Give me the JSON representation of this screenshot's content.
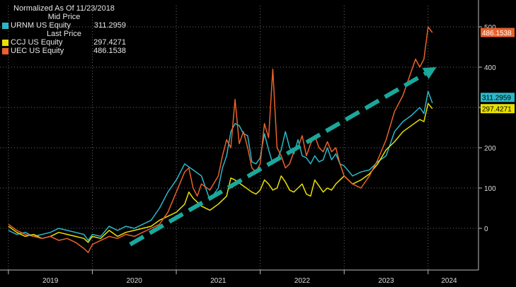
{
  "header": {
    "normalized_label": "Normalized As Of 11/23/2018",
    "mid_price_label": "Mid Price",
    "last_price_label": "Last Price"
  },
  "chart_data": {
    "type": "line",
    "title": "",
    "xlabel": "",
    "ylabel": "",
    "x_ticks": [
      "2019",
      "2020",
      "2021",
      "2022",
      "2023",
      "2024"
    ],
    "y_ticks": [
      0,
      100,
      200,
      300,
      400,
      500
    ],
    "ylim": [
      -100,
      520
    ],
    "xlim": [
      2018.9,
      2024.6
    ],
    "grid": true,
    "y_axis_side": "right",
    "legend_position": "top-left",
    "series": [
      {
        "name": "URNM US Equity",
        "price_type": "Mid Price",
        "last_value": "311.2959",
        "color": "#2ab8c8",
        "points": [
          [
            2019.0,
            -5
          ],
          [
            2019.1,
            -15
          ],
          [
            2019.2,
            -10
          ],
          [
            2019.3,
            -20
          ],
          [
            2019.4,
            -15
          ],
          [
            2019.5,
            -10
          ],
          [
            2019.6,
            0
          ],
          [
            2019.7,
            -5
          ],
          [
            2019.8,
            -10
          ],
          [
            2019.9,
            -15
          ],
          [
            2019.95,
            -30
          ],
          [
            2020.0,
            -15
          ],
          [
            2020.1,
            -20
          ],
          [
            2020.2,
            5
          ],
          [
            2020.3,
            -5
          ],
          [
            2020.4,
            5
          ],
          [
            2020.5,
            0
          ],
          [
            2020.6,
            10
          ],
          [
            2020.7,
            20
          ],
          [
            2020.8,
            50
          ],
          [
            2020.9,
            90
          ],
          [
            2021.0,
            120
          ],
          [
            2021.1,
            160
          ],
          [
            2021.2,
            145
          ],
          [
            2021.3,
            130
          ],
          [
            2021.35,
            100
          ],
          [
            2021.4,
            70
          ],
          [
            2021.5,
            100
          ],
          [
            2021.55,
            150
          ],
          [
            2021.6,
            180
          ],
          [
            2021.65,
            240
          ],
          [
            2021.7,
            260
          ],
          [
            2021.75,
            255
          ],
          [
            2021.8,
            235
          ],
          [
            2021.85,
            230
          ],
          [
            2021.9,
            165
          ],
          [
            2021.95,
            160
          ],
          [
            2022.0,
            175
          ],
          [
            2022.05,
            235
          ],
          [
            2022.1,
            195
          ],
          [
            2022.15,
            160
          ],
          [
            2022.2,
            170
          ],
          [
            2022.25,
            195
          ],
          [
            2022.3,
            240
          ],
          [
            2022.35,
            200
          ],
          [
            2022.4,
            185
          ],
          [
            2022.45,
            220
          ],
          [
            2022.5,
            180
          ],
          [
            2022.55,
            175
          ],
          [
            2022.6,
            160
          ],
          [
            2022.65,
            180
          ],
          [
            2022.7,
            165
          ],
          [
            2022.75,
            170
          ],
          [
            2022.8,
            200
          ],
          [
            2022.85,
            170
          ],
          [
            2022.9,
            185
          ],
          [
            2022.95,
            160
          ],
          [
            2023.0,
            155
          ],
          [
            2023.1,
            130
          ],
          [
            2023.2,
            140
          ],
          [
            2023.3,
            145
          ],
          [
            2023.4,
            165
          ],
          [
            2023.5,
            180
          ],
          [
            2023.6,
            240
          ],
          [
            2023.7,
            265
          ],
          [
            2023.8,
            280
          ],
          [
            2023.9,
            300
          ],
          [
            2023.95,
            285
          ],
          [
            2024.0,
            340
          ],
          [
            2024.05,
            311
          ]
        ]
      },
      {
        "name": "CCJ US Equity",
        "price_type": "Last Price",
        "last_value": "297.4271",
        "color": "#e8e000",
        "points": [
          [
            2019.0,
            5
          ],
          [
            2019.1,
            -10
          ],
          [
            2019.2,
            -20
          ],
          [
            2019.3,
            -15
          ],
          [
            2019.4,
            -25
          ],
          [
            2019.5,
            -20
          ],
          [
            2019.6,
            -10
          ],
          [
            2019.7,
            -15
          ],
          [
            2019.8,
            -20
          ],
          [
            2019.9,
            -25
          ],
          [
            2019.95,
            -35
          ],
          [
            2020.0,
            -20
          ],
          [
            2020.1,
            -25
          ],
          [
            2020.2,
            -5
          ],
          [
            2020.3,
            -20
          ],
          [
            2020.4,
            -10
          ],
          [
            2020.5,
            -5
          ],
          [
            2020.6,
            0
          ],
          [
            2020.7,
            5
          ],
          [
            2020.8,
            20
          ],
          [
            2020.9,
            30
          ],
          [
            2021.0,
            40
          ],
          [
            2021.1,
            60
          ],
          [
            2021.15,
            90
          ],
          [
            2021.2,
            75
          ],
          [
            2021.3,
            55
          ],
          [
            2021.4,
            45
          ],
          [
            2021.5,
            60
          ],
          [
            2021.6,
            80
          ],
          [
            2021.65,
            125
          ],
          [
            2021.7,
            120
          ],
          [
            2021.8,
            105
          ],
          [
            2021.9,
            90
          ],
          [
            2021.95,
            85
          ],
          [
            2022.0,
            95
          ],
          [
            2022.05,
            120
          ],
          [
            2022.1,
            110
          ],
          [
            2022.15,
            95
          ],
          [
            2022.2,
            100
          ],
          [
            2022.25,
            130
          ],
          [
            2022.3,
            115
          ],
          [
            2022.35,
            95
          ],
          [
            2022.4,
            90
          ],
          [
            2022.45,
            100
          ],
          [
            2022.5,
            110
          ],
          [
            2022.55,
            85
          ],
          [
            2022.6,
            80
          ],
          [
            2022.65,
            120
          ],
          [
            2022.7,
            105
          ],
          [
            2022.75,
            90
          ],
          [
            2022.8,
            100
          ],
          [
            2022.85,
            95
          ],
          [
            2022.9,
            110
          ],
          [
            2022.95,
            120
          ],
          [
            2023.0,
            130
          ],
          [
            2023.1,
            110
          ],
          [
            2023.2,
            120
          ],
          [
            2023.3,
            135
          ],
          [
            2023.4,
            160
          ],
          [
            2023.5,
            195
          ],
          [
            2023.6,
            215
          ],
          [
            2023.7,
            240
          ],
          [
            2023.8,
            255
          ],
          [
            2023.9,
            270
          ],
          [
            2023.95,
            265
          ],
          [
            2024.0,
            310
          ],
          [
            2024.05,
            297
          ]
        ]
      },
      {
        "name": "UEC US Equity",
        "price_type": "Last Price",
        "last_value": "486.1538",
        "color": "#e8622a",
        "points": [
          [
            2019.0,
            10
          ],
          [
            2019.1,
            -5
          ],
          [
            2019.2,
            -15
          ],
          [
            2019.3,
            -20
          ],
          [
            2019.4,
            -25
          ],
          [
            2019.5,
            -20
          ],
          [
            2019.6,
            -30
          ],
          [
            2019.7,
            -25
          ],
          [
            2019.8,
            -35
          ],
          [
            2019.9,
            -50
          ],
          [
            2019.95,
            -60
          ],
          [
            2020.0,
            -40
          ],
          [
            2020.1,
            -30
          ],
          [
            2020.2,
            -20
          ],
          [
            2020.3,
            -25
          ],
          [
            2020.4,
            -15
          ],
          [
            2020.5,
            -20
          ],
          [
            2020.6,
            -10
          ],
          [
            2020.7,
            0
          ],
          [
            2020.8,
            10
          ],
          [
            2020.9,
            40
          ],
          [
            2021.0,
            90
          ],
          [
            2021.1,
            140
          ],
          [
            2021.15,
            150
          ],
          [
            2021.2,
            100
          ],
          [
            2021.25,
            80
          ],
          [
            2021.3,
            110
          ],
          [
            2021.4,
            95
          ],
          [
            2021.5,
            130
          ],
          [
            2021.55,
            180
          ],
          [
            2021.6,
            220
          ],
          [
            2021.65,
            200
          ],
          [
            2021.7,
            320
          ],
          [
            2021.75,
            210
          ],
          [
            2021.8,
            240
          ],
          [
            2021.85,
            200
          ],
          [
            2021.9,
            150
          ],
          [
            2021.95,
            140
          ],
          [
            2022.0,
            160
          ],
          [
            2022.05,
            260
          ],
          [
            2022.1,
            225
          ],
          [
            2022.15,
            395
          ],
          [
            2022.2,
            200
          ],
          [
            2022.25,
            180
          ],
          [
            2022.3,
            150
          ],
          [
            2022.35,
            160
          ],
          [
            2022.4,
            190
          ],
          [
            2022.45,
            200
          ],
          [
            2022.5,
            230
          ],
          [
            2022.55,
            180
          ],
          [
            2022.6,
            210
          ],
          [
            2022.65,
            230
          ],
          [
            2022.7,
            200
          ],
          [
            2022.75,
            190
          ],
          [
            2022.8,
            215
          ],
          [
            2022.85,
            190
          ],
          [
            2022.9,
            200
          ],
          [
            2022.95,
            160
          ],
          [
            2023.0,
            130
          ],
          [
            2023.1,
            110
          ],
          [
            2023.2,
            100
          ],
          [
            2023.3,
            130
          ],
          [
            2023.4,
            170
          ],
          [
            2023.5,
            220
          ],
          [
            2023.6,
            290
          ],
          [
            2023.7,
            330
          ],
          [
            2023.8,
            390
          ],
          [
            2023.85,
            420
          ],
          [
            2023.9,
            400
          ],
          [
            2023.95,
            420
          ],
          [
            2024.0,
            500
          ],
          [
            2024.05,
            486
          ]
        ]
      }
    ],
    "annotations": [
      {
        "type": "dashed-arrow",
        "color": "#1aa89b",
        "from": [
          2020.45,
          -40
        ],
        "to": [
          2024.1,
          400
        ]
      }
    ]
  }
}
